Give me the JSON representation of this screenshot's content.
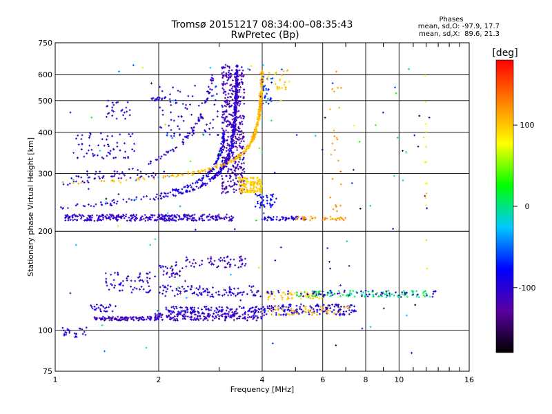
{
  "chart_data": {
    "type": "scatter",
    "title": "Tromsø 20151217 08:34:00–08:35:43",
    "subtitle": "RwPretec (Bp)",
    "xlabel": "Frequency [MHz]",
    "ylabel": "Stationary phase Virtual Height [km]",
    "x_scale": "log2",
    "y_scale": "log",
    "xlim": [
      1,
      16
    ],
    "ylim": [
      75,
      750
    ],
    "x_ticks": [
      1,
      2,
      4,
      6,
      8,
      10,
      16
    ],
    "x_tick_labels": [
      "1",
      "2",
      "4",
      "6",
      "8",
      "10",
      "16"
    ],
    "x_minor_ticks": [
      3,
      5,
      7,
      9,
      11,
      12,
      13,
      14,
      15
    ],
    "y_ticks": [
      75,
      100,
      200,
      300,
      400,
      500,
      600,
      750
    ],
    "y_tick_labels": [
      "75",
      "100",
      "200",
      "300",
      "400",
      "500",
      "600",
      "750"
    ],
    "grid": true,
    "stats": {
      "heading": "Phases",
      "line_o": "mean, sd,O: -97.9, 17.7",
      "line_x": "mean, sd,X:  89.6, 21.3"
    },
    "colorbar": {
      "label": "[deg]",
      "min": -180,
      "max": 180,
      "colors": [
        "#000000",
        "#5a00a0",
        "#0000ff",
        "#00c8ff",
        "#00ff00",
        "#ffff00",
        "#ff8000",
        "#ff0000"
      ],
      "ticks": [
        -100,
        0,
        100
      ],
      "tick_labels": [
        "-100",
        "0",
        "100"
      ]
    },
    "series": [
      {
        "shape": "band",
        "x_range": [
          1.07,
          3.3
        ],
        "y_range": [
          215,
          225
        ],
        "phase": -105,
        "n": 320
      },
      {
        "shape": "curve",
        "f_crit": 3.4,
        "y_base": 215,
        "y_scale": 32,
        "power": 0.5,
        "y_max": 640,
        "x_spread": 0.01,
        "phase": -100,
        "n": 420
      },
      {
        "shape": "curve",
        "f_crit": 3.2,
        "y_base": 225,
        "y_scale": 26,
        "power": 0.55,
        "y_max": 400,
        "x_spread": 0.01,
        "phase": -90,
        "n": 160
      },
      {
        "shape": "curve",
        "f_crit": 3.05,
        "y_base": 230,
        "y_scale": 70,
        "power": 0.6,
        "y_max": 600,
        "x_spread": 0.012,
        "phase": -105,
        "n": 120
      },
      {
        "shape": "band",
        "x_range": [
          3.05,
          3.55
        ],
        "y_range": [
          260,
          650
        ],
        "phase": -115,
        "n": 420
      },
      {
        "shape": "curve",
        "f_crit": 4.05,
        "y_base": 262,
        "y_scale": 30,
        "power": 0.55,
        "y_max": 610,
        "x_spread": 0.008,
        "phase": 108,
        "n": 360
      },
      {
        "shape": "band",
        "x_range": [
          3.4,
          4.0
        ],
        "y_range": [
          262,
          292
        ],
        "phase": 100,
        "n": 140
      },
      {
        "shape": "band",
        "x_range": [
          4.0,
          4.3
        ],
        "y_range": [
          480,
          600
        ],
        "phase": -60,
        "n": 30
      },
      {
        "shape": "band",
        "x_range": [
          4.1,
          4.8
        ],
        "y_range": [
          540,
          620
        ],
        "phase": 100,
        "n": 25
      },
      {
        "shape": "band",
        "x_range": [
          1.1,
          2.05
        ],
        "y_range": [
          290,
          305
        ],
        "phase": -105,
        "n": 35
      },
      {
        "shape": "band",
        "x_range": [
          1.15,
          1.7
        ],
        "y_range": [
          330,
          400
        ],
        "phase": -100,
        "n": 60
      },
      {
        "shape": "band",
        "x_range": [
          1.4,
          1.65
        ],
        "y_range": [
          440,
          500
        ],
        "phase": -100,
        "n": 25
      },
      {
        "shape": "band",
        "x_range": [
          1.9,
          2.1
        ],
        "y_range": [
          500,
          515
        ],
        "phase": -100,
        "n": 15
      },
      {
        "shape": "band",
        "x_range": [
          2.0,
          3.0
        ],
        "y_range": [
          380,
          560
        ],
        "phase": -100,
        "n": 70
      },
      {
        "shape": "band",
        "x_range": [
          3.8,
          4.4
        ],
        "y_range": [
          235,
          260
        ],
        "phase": -80,
        "n": 40
      },
      {
        "shape": "band",
        "x_range": [
          4.0,
          5.4
        ],
        "y_range": [
          216,
          222
        ],
        "phase": -95,
        "n": 55
      },
      {
        "shape": "band",
        "x_range": [
          5.0,
          7.0
        ],
        "y_range": [
          216,
          222
        ],
        "phase": 120,
        "n": 40
      },
      {
        "shape": "band",
        "x_range": [
          1.05,
          1.25
        ],
        "y_range": [
          95,
          102
        ],
        "phase": -100,
        "n": 25
      },
      {
        "shape": "band",
        "x_range": [
          1.25,
          1.5
        ],
        "y_range": [
          113,
          120
        ],
        "phase": -100,
        "n": 25
      },
      {
        "shape": "band",
        "x_range": [
          1.3,
          2.0
        ],
        "y_range": [
          107,
          110
        ],
        "phase": -110,
        "n": 110
      },
      {
        "shape": "band",
        "x_range": [
          1.95,
          4.0
        ],
        "y_range": [
          107,
          113
        ],
        "phase": -110,
        "n": 180
      },
      {
        "shape": "band",
        "x_range": [
          2.1,
          4.0
        ],
        "y_range": [
          113,
          118
        ],
        "phase": -100,
        "n": 120
      },
      {
        "shape": "band",
        "x_range": [
          4.0,
          7.5
        ],
        "y_range": [
          111,
          120
        ],
        "phase": -95,
        "n": 150
      },
      {
        "shape": "band",
        "x_range": [
          4.0,
          7.5
        ],
        "y_range": [
          111,
          118
        ],
        "phase": 110,
        "n": 60
      },
      {
        "shape": "band",
        "x_range": [
          4.0,
          6.0
        ],
        "y_range": [
          124,
          131
        ],
        "phase": 100,
        "n": 60
      },
      {
        "shape": "band",
        "x_range": [
          5.0,
          12.5
        ],
        "y_range": [
          126,
          132
        ],
        "phase": 5,
        "n": 110
      },
      {
        "shape": "band",
        "x_range": [
          2.6,
          13.0
        ],
        "y_range": [
          126,
          132
        ],
        "phase": -100,
        "n": 90
      },
      {
        "shape": "band",
        "x_range": [
          2.0,
          3.8
        ],
        "y_range": [
          127,
          137
        ],
        "phase": -100,
        "n": 80
      },
      {
        "shape": "band",
        "x_range": [
          1.4,
          1.9
        ],
        "y_range": [
          130,
          150
        ],
        "phase": -100,
        "n": 60
      },
      {
        "shape": "band",
        "x_range": [
          2.0,
          2.35
        ],
        "y_range": [
          145,
          158
        ],
        "phase": -105,
        "n": 30
      },
      {
        "shape": "band",
        "x_range": [
          2.4,
          3.6
        ],
        "y_range": [
          155,
          168
        ],
        "phase": -110,
        "n": 60
      },
      {
        "shape": "band",
        "x_range": [
          1.05,
          13.0
        ],
        "y_range": [
          85,
          650
        ],
        "phase": -60,
        "phase_spread": 120,
        "n": 120
      },
      {
        "shape": "band",
        "x_range": [
          6.3,
          6.8
        ],
        "y_range": [
          210,
          620
        ],
        "phase": 120,
        "n": 25
      },
      {
        "shape": "band",
        "x_range": [
          11.8,
          12.1
        ],
        "y_range": [
          150,
          630
        ],
        "phase": 80,
        "n": 15
      }
    ]
  }
}
